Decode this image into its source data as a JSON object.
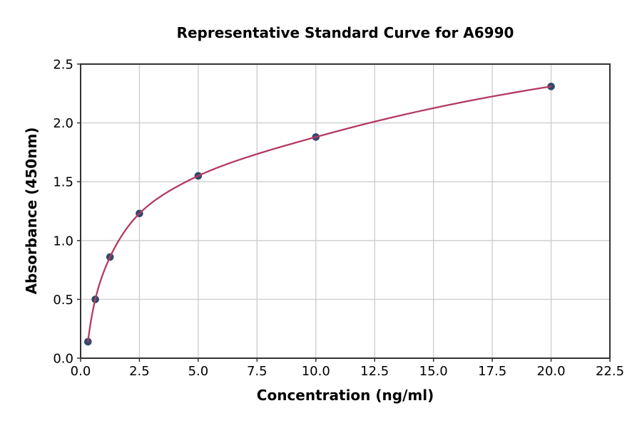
{
  "chart_data": {
    "type": "scatter",
    "title": "Representative Standard Curve for A6990",
    "xlabel": "Concentration (ng/ml)",
    "ylabel": "Absorbance (450nm)",
    "x": [
      0.313,
      0.625,
      1.25,
      2.5,
      5,
      10,
      20
    ],
    "y": [
      0.14,
      0.5,
      0.86,
      1.23,
      1.55,
      1.88,
      2.31
    ],
    "has_fit_curve": true,
    "xlim": [
      0,
      22.5
    ],
    "ylim": [
      0,
      2.5
    ],
    "xticks": {
      "values": [
        0,
        2.5,
        5,
        7.5,
        10,
        12.5,
        15,
        17.5,
        20,
        22.5
      ],
      "labels": [
        "0.0",
        "2.5",
        "5.0",
        "7.5",
        "10.0",
        "12.5",
        "15.0",
        "17.5",
        "20.0",
        "22.5"
      ]
    },
    "yticks": {
      "values": [
        0,
        0.5,
        1,
        1.5,
        2,
        2.5
      ],
      "labels": [
        "0.0",
        "0.5",
        "1.0",
        "1.5",
        "2.0",
        "2.5"
      ]
    },
    "grid": true,
    "legend": null,
    "colors": {
      "curve": "#b43a60",
      "marker": "#2e4a6b",
      "grid": "#cccccc",
      "spine": "#333333",
      "text": "#000000",
      "background": "#ffffff"
    }
  }
}
